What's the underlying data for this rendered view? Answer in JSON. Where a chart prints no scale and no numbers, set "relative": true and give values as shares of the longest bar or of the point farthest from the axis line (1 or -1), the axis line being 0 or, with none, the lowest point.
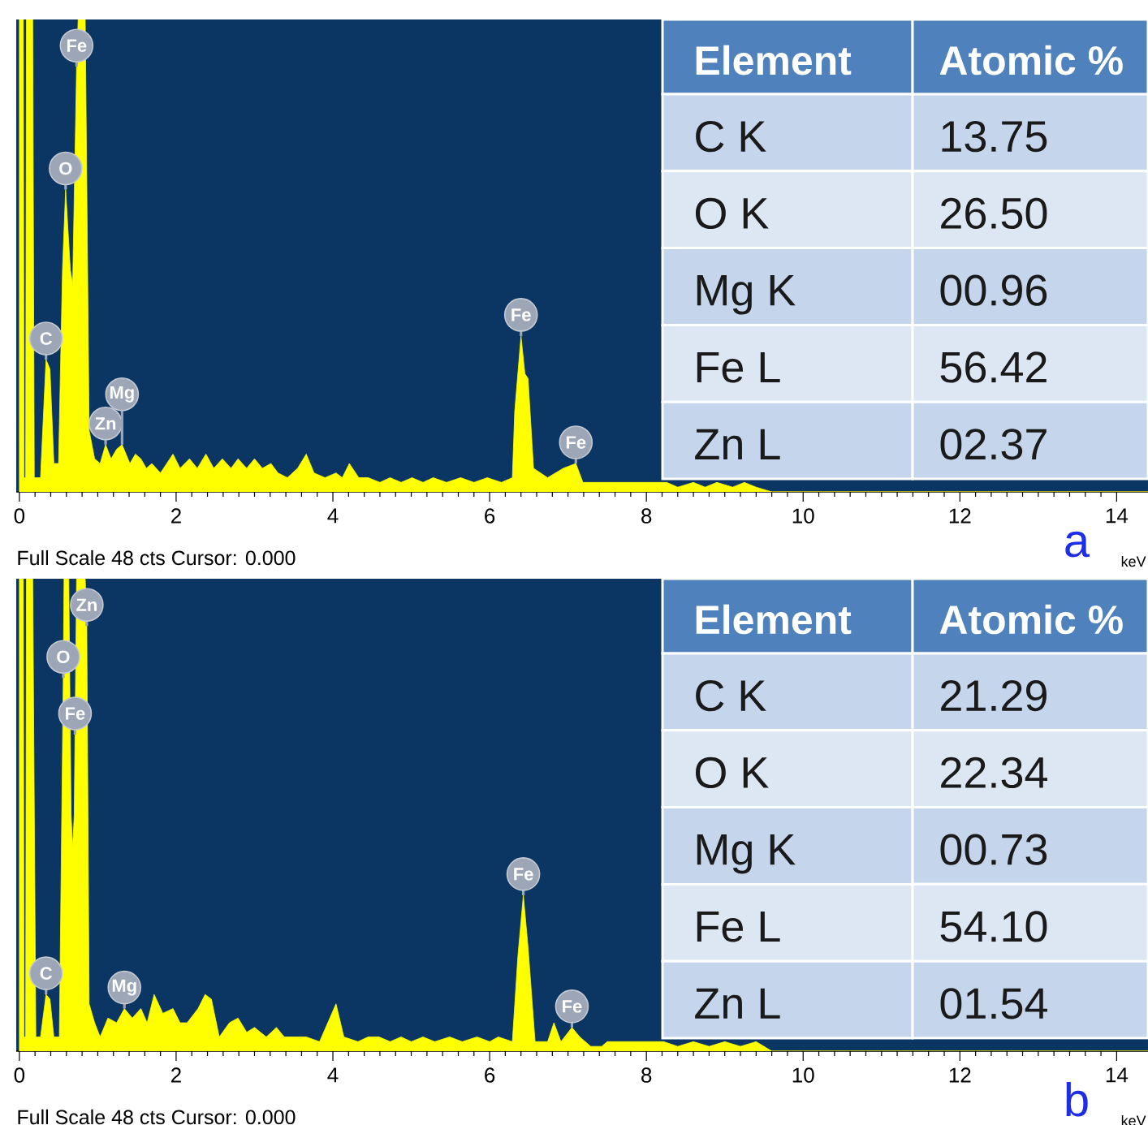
{
  "chart_data": [
    {
      "type": "area",
      "title": "a",
      "xlabel": "keV",
      "relative": true,
      "color": "#ffff00",
      "xlim": [
        -0.04,
        14.4
      ],
      "xticks": [
        0,
        2,
        4,
        6,
        8,
        10,
        12,
        14
      ],
      "x": [
        0,
        0.05,
        0.06,
        0.08,
        0.09,
        0.17,
        0.19,
        0.27,
        0.34,
        0.39,
        0.44,
        0.5,
        0.55,
        0.59,
        0.65,
        0.68,
        0.73,
        0.75,
        0.84,
        0.89,
        0.96,
        1.03,
        1.1,
        1.17,
        1.24,
        1.31,
        1.41,
        1.48,
        1.55,
        1.62,
        1.69,
        1.8,
        1.96,
        2.05,
        2.17,
        2.27,
        2.38,
        2.48,
        2.59,
        2.7,
        2.79,
        2.9,
        3.0,
        3.1,
        3.21,
        3.3,
        3.42,
        3.55,
        3.66,
        3.76,
        3.9,
        4.04,
        4.12,
        4.21,
        4.33,
        4.45,
        4.6,
        4.73,
        4.87,
        5.01,
        5.15,
        5.28,
        5.45,
        5.63,
        5.8,
        5.97,
        6.15,
        6.29,
        6.32,
        6.4,
        6.45,
        6.49,
        6.56,
        6.74,
        6.94,
        7.1,
        7.19,
        7.5,
        7.91,
        8.26,
        8.4,
        8.6,
        8.75,
        8.9,
        9.1,
        9.25,
        9.4,
        9.6,
        14.4
      ],
      "values": [
        1,
        1,
        0.03,
        0.03,
        1,
        1,
        0.03,
        0.03,
        0.28,
        0.26,
        0.06,
        0.06,
        0.47,
        0.64,
        0.47,
        0.44,
        0.9,
        1,
        1,
        0.13,
        0.07,
        0.06,
        0.1,
        0.07,
        0.09,
        0.1,
        0.06,
        0.08,
        0.07,
        0.05,
        0.06,
        0.04,
        0.08,
        0.05,
        0.07,
        0.05,
        0.08,
        0.05,
        0.07,
        0.05,
        0.07,
        0.05,
        0.07,
        0.05,
        0.06,
        0.04,
        0.03,
        0.05,
        0.08,
        0.04,
        0.03,
        0.04,
        0.03,
        0.06,
        0.03,
        0.03,
        0.02,
        0.03,
        0.02,
        0.03,
        0.02,
        0.03,
        0.02,
        0.03,
        0.02,
        0.03,
        0.02,
        0.03,
        0.17,
        0.33,
        0.25,
        0.24,
        0.05,
        0.03,
        0.05,
        0.06,
        0.02,
        0.02,
        0.02,
        0.02,
        0.01,
        0.02,
        0.01,
        0.02,
        0.01,
        0.02,
        0.01,
        0,
        0
      ],
      "annotations": [
        {
          "text": "Fe",
          "x": 0.73,
          "y": 0.9
        },
        {
          "text": "O",
          "x": 0.59,
          "y": 0.64
        },
        {
          "text": "C",
          "x": 0.34,
          "y": 0.28
        },
        {
          "text": "Zn",
          "x": 1.1,
          "y": 0.1
        },
        {
          "text": "Mg",
          "x": 1.31,
          "y": 0.1
        },
        {
          "text": "Fe",
          "x": 6.4,
          "y": 0.33
        },
        {
          "text": "Fe",
          "x": 7.1,
          "y": 0.06
        },
        "Full Scale 48 cts Cursor: 0.000"
      ]
    },
    {
      "type": "other",
      "annotations": [
        "Element",
        "Atomic %",
        "C K",
        "13.75",
        "O K",
        "26.50",
        "Mg K",
        "00.96",
        "Fe L",
        "56.42",
        "Zn L",
        "02.37"
      ]
    },
    {
      "type": "area",
      "title": "b",
      "xlabel": "keV",
      "relative": true,
      "color": "#ffff00",
      "xlim": [
        -0.04,
        14.4
      ],
      "xticks": [
        0,
        2,
        4,
        6,
        8,
        10,
        12,
        14
      ],
      "x": [
        0,
        0.05,
        0.06,
        0.08,
        0.09,
        0.17,
        0.21,
        0.27,
        0.34,
        0.39,
        0.44,
        0.51,
        0.56,
        0.57,
        0.63,
        0.66,
        0.68,
        0.7,
        0.71,
        0.73,
        0.84,
        0.86,
        0.89,
        0.96,
        1.03,
        1.13,
        1.24,
        1.34,
        1.44,
        1.55,
        1.63,
        1.72,
        1.83,
        1.96,
        2.05,
        2.14,
        2.28,
        2.37,
        2.45,
        2.55,
        2.68,
        2.79,
        2.9,
        3.0,
        3.15,
        3.28,
        3.38,
        3.49,
        3.66,
        3.83,
        4.04,
        4.14,
        4.32,
        4.45,
        4.59,
        4.73,
        4.87,
        5.0,
        5.15,
        5.3,
        5.49,
        5.65,
        5.84,
        6.0,
        6.11,
        6.29,
        6.36,
        6.43,
        6.49,
        6.58,
        6.74,
        6.82,
        6.91,
        7.05,
        7.15,
        7.29,
        7.43,
        7.5,
        8.05,
        8.22,
        8.4,
        8.6,
        8.8,
        9.0,
        9.2,
        9.4,
        9.6,
        14.4
      ],
      "values": [
        1,
        1,
        0.03,
        0.03,
        1,
        1,
        0.03,
        0.03,
        0.12,
        0.11,
        0.03,
        0.03,
        0.79,
        1,
        1,
        0.5,
        0.43,
        0.5,
        0.67,
        1,
        1,
        0.9,
        0.1,
        0.06,
        0.03,
        0.07,
        0.06,
        0.09,
        0.07,
        0.09,
        0.06,
        0.12,
        0.08,
        0.09,
        0.06,
        0.06,
        0.09,
        0.12,
        0.11,
        0.03,
        0.06,
        0.07,
        0.04,
        0.05,
        0.03,
        0.05,
        0.03,
        0.03,
        0.03,
        0.02,
        0.1,
        0.03,
        0.02,
        0.03,
        0.03,
        0.02,
        0.03,
        0.02,
        0.03,
        0.02,
        0.03,
        0.02,
        0.03,
        0.02,
        0.03,
        0.02,
        0.2,
        0.33,
        0.22,
        0.02,
        0.02,
        0.06,
        0.02,
        0.05,
        0.03,
        0.01,
        0.01,
        0.02,
        0.02,
        0.02,
        0.01,
        0.02,
        0.01,
        0.02,
        0.01,
        0.02,
        0,
        0
      ],
      "annotations": [
        {
          "text": "Zn",
          "x": 0.86,
          "y": 0.9
        },
        {
          "text": "O",
          "x": 0.56,
          "y": 0.79
        },
        {
          "text": "Fe",
          "x": 0.71,
          "y": 0.67
        },
        {
          "text": "C",
          "x": 0.34,
          "y": 0.12
        },
        {
          "text": "Mg",
          "x": 1.34,
          "y": 0.09
        },
        {
          "text": "Fe",
          "x": 6.43,
          "y": 0.33
        },
        {
          "text": "Fe",
          "x": 7.05,
          "y": 0.05
        },
        "Full Scale 48 cts Cursor: 0.000"
      ]
    },
    {
      "type": "other",
      "annotations": [
        "Element",
        "Atomic %",
        "C K",
        "21.29",
        "O K",
        "22.34",
        "Mg K",
        "00.73",
        "Fe L",
        "54.10",
        "Zn L",
        "01.54"
      ]
    }
  ]
}
